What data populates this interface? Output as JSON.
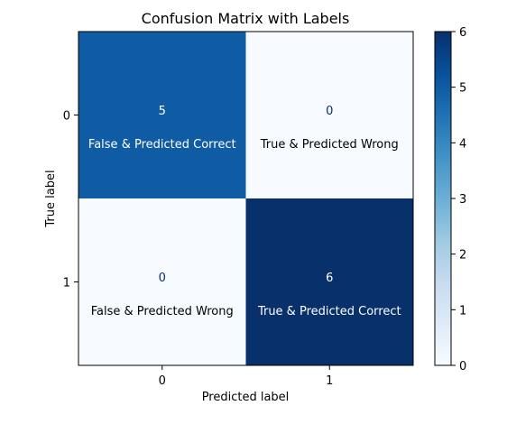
{
  "chart_data": {
    "type": "heatmap",
    "title": "Confusion Matrix with Labels",
    "xlabel": "Predicted label",
    "ylabel": "True label",
    "x_categories": [
      "0",
      "1"
    ],
    "y_categories": [
      "0",
      "1"
    ],
    "values": [
      [
        5,
        0
      ],
      [
        0,
        6
      ]
    ],
    "value_labels": [
      [
        "5",
        "0"
      ],
      [
        "0",
        "6"
      ]
    ],
    "cell_labels": [
      [
        "False & Predicted Correct",
        "True & Predicted Wrong"
      ],
      [
        "False & Predicted Wrong",
        "True & Predicted Correct"
      ]
    ],
    "colormap": "Blues",
    "colors": {
      "low": "#f7fbff",
      "high": "#08306b"
    },
    "colorbar": {
      "min": 0,
      "max": 6,
      "ticks": [
        "0",
        "1",
        "2",
        "3",
        "4",
        "5",
        "6"
      ]
    },
    "grid": false
  }
}
